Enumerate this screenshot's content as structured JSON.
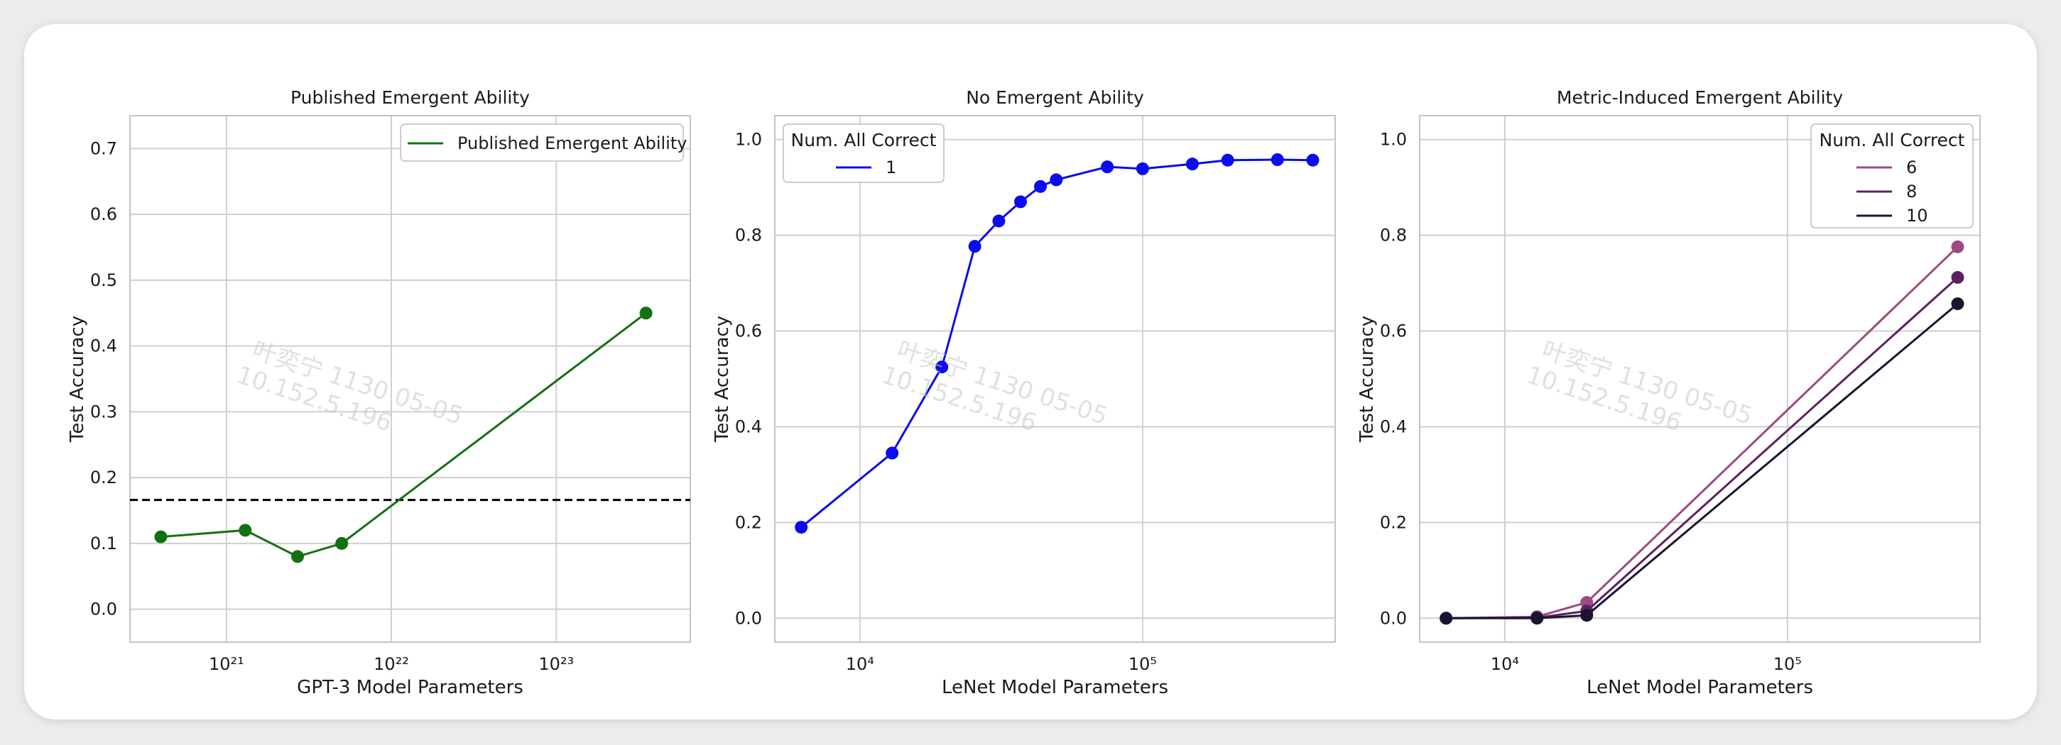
{
  "chart_data": [
    {
      "type": "line",
      "title": "Published Emergent Ability",
      "xlabel": "GPT-3 Model Parameters",
      "ylabel": "Test Accuracy",
      "xscale": "log",
      "xlim": [
        2.6e+20,
        6.5e+23
      ],
      "ylim": [
        -0.05,
        0.75
      ],
      "xticks": [
        {
          "value": 1e+21,
          "label": "10²¹"
        },
        {
          "value": 1e+22,
          "label": "10²²"
        },
        {
          "value": 1e+23,
          "label": "10²³"
        }
      ],
      "yticks": [
        {
          "value": 0.0,
          "label": "0.0"
        },
        {
          "value": 0.1,
          "label": "0.1"
        },
        {
          "value": 0.2,
          "label": "0.2"
        },
        {
          "value": 0.3,
          "label": "0.3"
        },
        {
          "value": 0.4,
          "label": "0.4"
        },
        {
          "value": 0.5,
          "label": "0.5"
        },
        {
          "value": 0.6,
          "label": "0.6"
        },
        {
          "value": 0.7,
          "label": "0.7"
        }
      ],
      "grid": true,
      "legend_position": "top-right",
      "legend_title": "",
      "hline": {
        "y": 0.166,
        "style": "dashed",
        "color": "#000000"
      },
      "series": [
        {
          "name": "Published Emergent Ability",
          "color": "#137113",
          "x": [
            4e+20,
            1.3e+21,
            2.7e+21,
            5e+21,
            3.5e+23
          ],
          "y": [
            0.11,
            0.12,
            0.08,
            0.1,
            0.45
          ]
        }
      ]
    },
    {
      "type": "line",
      "title": "No Emergent Ability",
      "xlabel": "LeNet Model Parameters",
      "ylabel": "Test Accuracy",
      "xscale": "log",
      "xlim": [
        5000,
        480000
      ],
      "ylim": [
        -0.05,
        1.05
      ],
      "xticks": [
        {
          "value": 10000,
          "label": "10⁴"
        },
        {
          "value": 100000,
          "label": "10⁵"
        }
      ],
      "yticks": [
        {
          "value": 0.0,
          "label": "0.0"
        },
        {
          "value": 0.2,
          "label": "0.2"
        },
        {
          "value": 0.4,
          "label": "0.4"
        },
        {
          "value": 0.6,
          "label": "0.6"
        },
        {
          "value": 0.8,
          "label": "0.8"
        },
        {
          "value": 1.0,
          "label": "1.0"
        }
      ],
      "grid": true,
      "legend_position": "top-left",
      "legend_title": "Num. All Correct",
      "series": [
        {
          "name": "1",
          "color": "#0b0bf0",
          "x": [
            6200,
            13000,
            19500,
            25500,
            31000,
            37000,
            43500,
            49500,
            75000,
            100000,
            150000,
            200000,
            300000,
            400000
          ],
          "y": [
            0.19,
            0.345,
            0.525,
            0.777,
            0.83,
            0.87,
            0.902,
            0.916,
            0.943,
            0.939,
            0.949,
            0.957,
            0.958,
            0.957
          ]
        }
      ]
    },
    {
      "type": "line",
      "title": "Metric-Induced Emergent Ability",
      "xlabel": "LeNet Model Parameters",
      "ylabel": "Test Accuracy",
      "xscale": "log",
      "xlim": [
        5000,
        480000
      ],
      "ylim": [
        -0.05,
        1.05
      ],
      "xticks": [
        {
          "value": 10000,
          "label": "10⁴"
        },
        {
          "value": 100000,
          "label": "10⁵"
        }
      ],
      "yticks": [
        {
          "value": 0.0,
          "label": "0.0"
        },
        {
          "value": 0.2,
          "label": "0.2"
        },
        {
          "value": 0.4,
          "label": "0.4"
        },
        {
          "value": 0.6,
          "label": "0.6"
        },
        {
          "value": 0.8,
          "label": "0.8"
        },
        {
          "value": 1.0,
          "label": "1.0"
        }
      ],
      "grid": true,
      "legend_position": "top-right",
      "legend_title": "Num. All Correct",
      "series": [
        {
          "name": "6",
          "color": "#9c4a82",
          "x": [
            6200,
            13000,
            19500,
            400000
          ],
          "y": [
            0.0,
            0.003,
            0.033,
            0.776
          ]
        },
        {
          "name": "8",
          "color": "#5c2160",
          "x": [
            6200,
            13000,
            19500,
            400000
          ],
          "y": [
            0.0,
            0.001,
            0.015,
            0.712
          ]
        },
        {
          "name": "10",
          "color": "#1a1430",
          "x": [
            6200,
            13000,
            19500,
            400000
          ],
          "y": [
            0.0,
            0.0,
            0.006,
            0.657
          ]
        }
      ]
    }
  ],
  "watermark": {
    "line1": "叶奕宁 1130 05-05",
    "line2": "10.152.5.196"
  }
}
